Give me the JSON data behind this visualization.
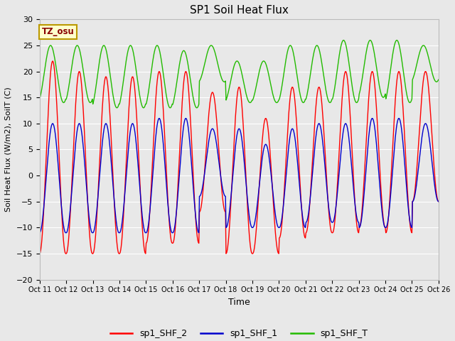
{
  "title": "SP1 Soil Heat Flux",
  "xlabel": "Time",
  "ylabel": "Soil Heat Flux (W/m2), SoilT (C)",
  "ylim": [
    -20,
    30
  ],
  "fig_bg_color": "#e8e8e8",
  "plot_bg_color": "#e8e8e8",
  "grid_color": "#ffffff",
  "xtick_labels": [
    "Oct 11",
    "Oct 12",
    "Oct 13",
    "Oct 14",
    "Oct 15",
    "Oct 16",
    "Oct 17",
    "Oct 18",
    "Oct 19",
    "Oct 20",
    "Oct 21",
    "Oct 22",
    "Oct 23",
    "Oct 24",
    "Oct 25",
    "Oct 26"
  ],
  "legend_labels": [
    "sp1_SHF_2",
    "sp1_SHF_1",
    "sp1_SHF_T"
  ],
  "legend_colors": [
    "#ff0000",
    "#0000cc",
    "#22bb00"
  ],
  "tz_label": "TZ_osu",
  "tz_box_color": "#ffffcc",
  "tz_text_color": "#880000",
  "num_days": 15,
  "points_per_day": 48,
  "shf2_amp": [
    22,
    20,
    19,
    19,
    20,
    20,
    16,
    17,
    11,
    17,
    17,
    20,
    20,
    20,
    20
  ],
  "shf2_min": [
    -15,
    -15,
    -15,
    -15,
    -13,
    -13,
    -7,
    -15,
    -15,
    -12,
    -11,
    -11,
    -10,
    -11,
    -5
  ],
  "shf1_amp": [
    10,
    10,
    10,
    10,
    11,
    11,
    9,
    9,
    6,
    9,
    10,
    10,
    11,
    11,
    10
  ],
  "shf1_min": [
    -11,
    -11,
    -11,
    -11,
    -11,
    -11,
    -4,
    -10,
    -10,
    -10,
    -9,
    -9,
    -10,
    -10,
    -5
  ],
  "shfT_max": [
    25,
    25,
    25,
    25,
    25,
    24,
    25,
    22,
    22,
    25,
    25,
    26,
    26,
    26,
    25
  ],
  "shfT_min": [
    14,
    14,
    13,
    13,
    13,
    13,
    18,
    14,
    14,
    14,
    14,
    14,
    15,
    14,
    18
  ],
  "shfT_phase_shift": [
    0.5,
    0.5,
    0.5,
    0.5,
    0.5,
    0.5,
    0.3,
    0.5,
    0.5,
    0.5,
    0.5,
    0.5,
    0.5,
    0.5,
    0.5
  ]
}
